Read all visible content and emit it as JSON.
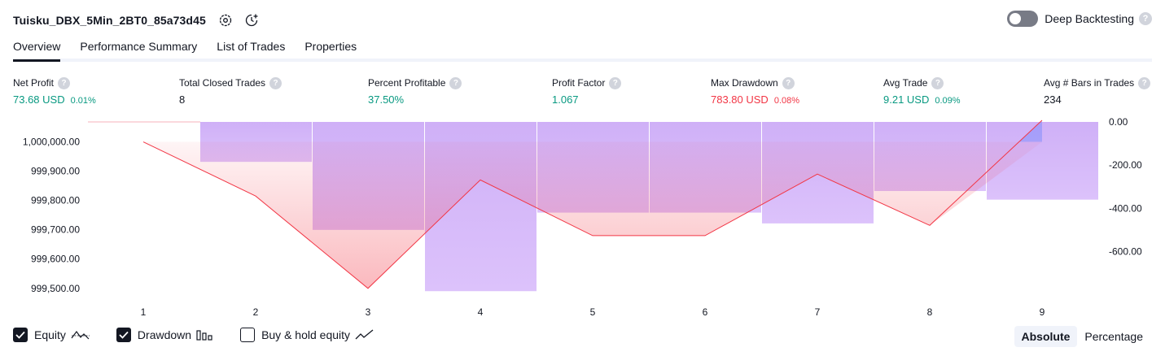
{
  "header": {
    "title": "Tuisku_DBX_5Min_2BT0_85a73d45",
    "deep_backtesting_label": "Deep Backtesting",
    "help_glyph": "?"
  },
  "tabs": [
    {
      "label": "Overview",
      "active": true
    },
    {
      "label": "Performance Summary",
      "active": false
    },
    {
      "label": "List of Trades",
      "active": false
    },
    {
      "label": "Properties",
      "active": false
    }
  ],
  "metrics": {
    "net_profit": {
      "label": "Net Profit",
      "value": "73.68 USD",
      "sub": "0.01%"
    },
    "total_closed_trades": {
      "label": "Total Closed Trades",
      "value": "8"
    },
    "percent_profitable": {
      "label": "Percent Profitable",
      "value": "37.50%"
    },
    "profit_factor": {
      "label": "Profit Factor",
      "value": "1.067"
    },
    "max_drawdown": {
      "label": "Max Drawdown",
      "value": "783.80 USD",
      "sub": "0.08%"
    },
    "avg_trade": {
      "label": "Avg Trade",
      "value": "9.21 USD",
      "sub": "0.09%"
    },
    "avg_bars": {
      "label": "Avg # Bars in Trades",
      "value": "234"
    }
  },
  "colors": {
    "green": "#089981",
    "red": "#f23645",
    "drawdown_bar": "#c9a3f5",
    "equity_line": "#f23645"
  },
  "chart_data": {
    "type": "line",
    "x": [
      1,
      2,
      3,
      4,
      5,
      6,
      7,
      8,
      9
    ],
    "equity": {
      "name": "Equity",
      "values": [
        1000000.0,
        999815.0,
        999500.0,
        999870.0,
        999680.0,
        999680.0,
        999890.0,
        999715.0,
        1000073.68
      ]
    },
    "drawdown": {
      "name": "Drawdown",
      "type": "bar",
      "values": [
        0,
        -185.0,
        -500.0,
        -783.8,
        -420.0,
        -420.0,
        -470.0,
        -320.0,
        -360.0
      ]
    },
    "left_axis": {
      "ticks": [
        1000000,
        999900,
        999800,
        999700,
        999600,
        999500
      ],
      "tick_labels": [
        "1,000,000.00",
        "999,900.00",
        "999,800.00",
        "999,700.00",
        "999,600.00",
        "999,500.00"
      ],
      "range": [
        999480,
        1000068
      ]
    },
    "right_axis": {
      "ticks": [
        0,
        -200,
        -400,
        -600
      ],
      "tick_labels": [
        "0.00",
        "-200.00",
        "-400.00",
        "-600.00"
      ],
      "range": [
        -790,
        0
      ]
    },
    "x_tick_labels": [
      "1",
      "2",
      "3",
      "4",
      "5",
      "6",
      "7",
      "8",
      "9"
    ]
  },
  "legend": {
    "equity": {
      "label": "Equity",
      "checked": true,
      "icon": "equity-line-icon"
    },
    "drawdown": {
      "label": "Drawdown",
      "checked": true,
      "icon": "drawdown-bars-icon"
    },
    "buy_hold": {
      "label": "Buy & hold equity",
      "checked": false,
      "icon": "buy-hold-line-icon"
    }
  },
  "mode": {
    "absolute_label": "Absolute",
    "percentage_label": "Percentage",
    "selected": "absolute"
  }
}
